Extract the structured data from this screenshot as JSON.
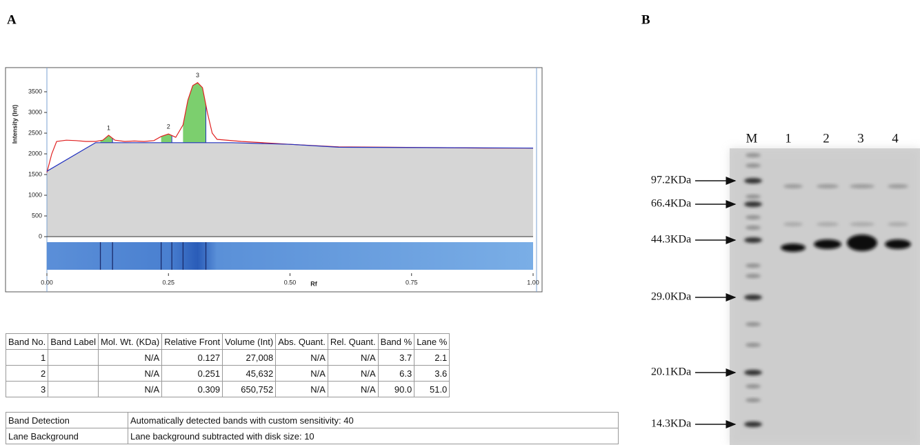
{
  "panel_labels": [
    "A",
    "B"
  ],
  "chart_data": {
    "type": "density",
    "y_label": "Intensity (Int)",
    "x_label": "Rf",
    "xlim": [
      0,
      1
    ],
    "ylim": [
      0,
      4000
    ],
    "xticks": [
      {
        "value": 0,
        "label": "0.00"
      },
      {
        "value": 0.25,
        "label": "0.25"
      },
      {
        "value": 0.5,
        "label": "0.50"
      },
      {
        "value": 0.75,
        "label": "0.75"
      },
      {
        "value": 1,
        "label": "1.00"
      }
    ],
    "yticks": [
      0,
      500,
      1000,
      1500,
      2000,
      2500,
      3000,
      3500
    ],
    "series": [
      {
        "color": "#e02020",
        "x": [
          0,
          0.01,
          0.02,
          0.04,
          0.06,
          0.08,
          0.1,
          0.115,
          0.127,
          0.14,
          0.16,
          0.18,
          0.2,
          0.22,
          0.235,
          0.25,
          0.265,
          0.28,
          0.29,
          0.3,
          0.31,
          0.32,
          0.33,
          0.34,
          0.35,
          0.4,
          0.5,
          0.6,
          0.7,
          0.8,
          0.9,
          1.0
        ],
        "values": [
          1550,
          2000,
          2300,
          2330,
          2320,
          2300,
          2300,
          2330,
          2450,
          2330,
          2300,
          2310,
          2300,
          2320,
          2420,
          2480,
          2400,
          2700,
          3300,
          3650,
          3720,
          3600,
          3000,
          2500,
          2350,
          2300,
          2230,
          2170,
          2160,
          2150,
          2140,
          2140
        ]
      },
      {
        "color": "#2030c0",
        "x": [
          0,
          0.1,
          0.38,
          0.5,
          0.6,
          1.0
        ],
        "values": [
          1580,
          2270,
          2270,
          2230,
          2160,
          2140
        ]
      }
    ],
    "peak_color": "#7ccf6e",
    "peak_labels": [
      "1",
      "2",
      "3"
    ],
    "band_bounds": [
      [
        0.11,
        0.135
      ],
      [
        0.235,
        0.257
      ],
      [
        0.28,
        0.327
      ]
    ]
  },
  "band_table": {
    "header": [
      "Band No.",
      "Band Label",
      "Mol. Wt. (KDa)",
      "Relative Front",
      "Volume (Int)",
      "Abs. Quant.",
      "Rel. Quant.",
      "Band %",
      "Lane %"
    ],
    "rows": [
      [
        "1",
        null,
        "N/A",
        "0.127",
        "27,008",
        "N/A",
        "N/A",
        "3.7",
        "2.1"
      ],
      [
        "2",
        null,
        "N/A",
        "0.251",
        "45,632",
        "N/A",
        "N/A",
        "6.3",
        "3.6"
      ],
      [
        "3",
        null,
        "N/A",
        "0.309",
        "650,752",
        "N/A",
        "N/A",
        "90.0",
        "51.0"
      ]
    ]
  },
  "settings_table": {
    "rows": [
      [
        "Band Detection",
        "Automatically detected bands with custom sensitivity: 40"
      ],
      [
        "Lane Background",
        "Lane background subtracted with disk size: 10"
      ]
    ]
  },
  "gel": {
    "lanes": [
      "M",
      "1",
      "2",
      "3",
      "4"
    ],
    "markers": [
      "97.2KDa",
      "66.4KDa",
      "44.3KDa",
      "29.0KDa",
      "20.1KDa",
      "14.3KDa"
    ]
  }
}
